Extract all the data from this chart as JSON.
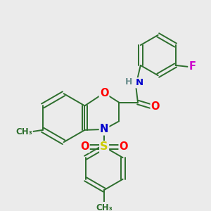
{
  "bg_color": "#ebebeb",
  "bond_color": "#2d6e2d",
  "atom_colors": {
    "O": "#ff0000",
    "N": "#0000cc",
    "S": "#cccc00",
    "F": "#cc00cc",
    "H": "#6b8e8e",
    "C": "#2d6e2d"
  },
  "lw": 1.4,
  "fs": 9.5
}
